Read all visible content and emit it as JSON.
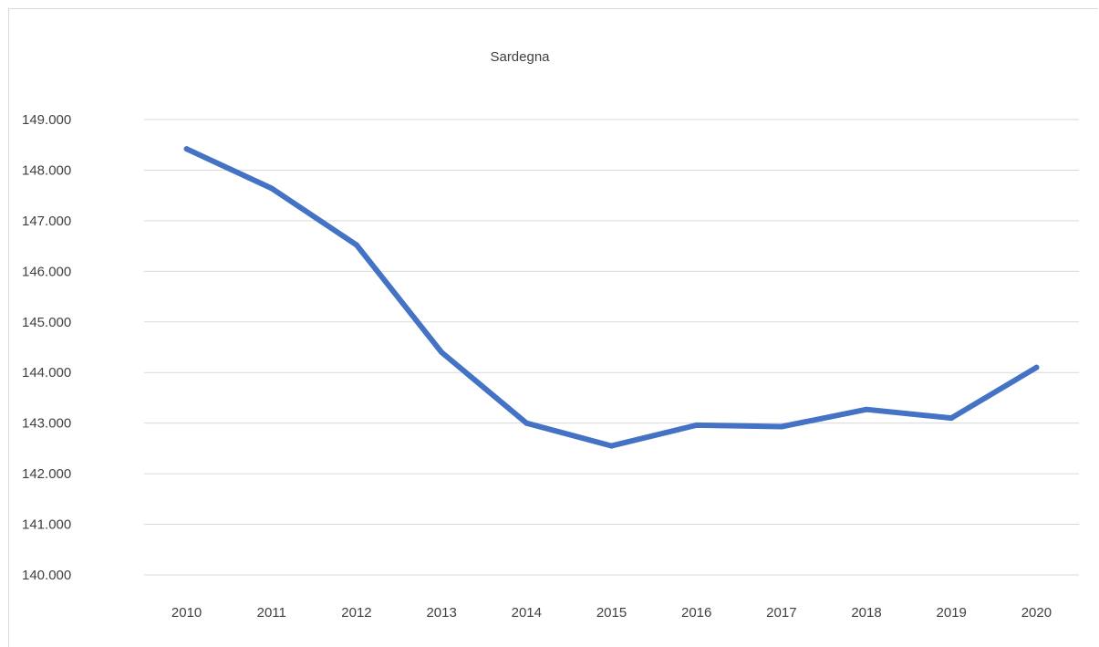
{
  "chart_data": {
    "type": "line",
    "title": "Sardegna",
    "xlabel": "",
    "ylabel": "",
    "categories": [
      "2010",
      "2011",
      "2012",
      "2013",
      "2014",
      "2015",
      "2016",
      "2017",
      "2018",
      "2019",
      "2020"
    ],
    "series": [
      {
        "values": [
          148420,
          147640,
          146520,
          144400,
          143000,
          142550,
          142960,
          142930,
          143270,
          143100,
          144100
        ]
      }
    ],
    "ylim": [
      140000,
      149000
    ],
    "yticks": [
      140000,
      141000,
      142000,
      143000,
      144000,
      145000,
      146000,
      147000,
      148000,
      149000
    ],
    "ytick_labels": [
      "140.000",
      "141.000",
      "142.000",
      "143.000",
      "144.000",
      "145.000",
      "146.000",
      "147.000",
      "148.000",
      "149.000"
    ],
    "grid": "horizontal",
    "legend": "none",
    "line_color": "#4472c4",
    "grid_color": "#d9d9d9"
  }
}
